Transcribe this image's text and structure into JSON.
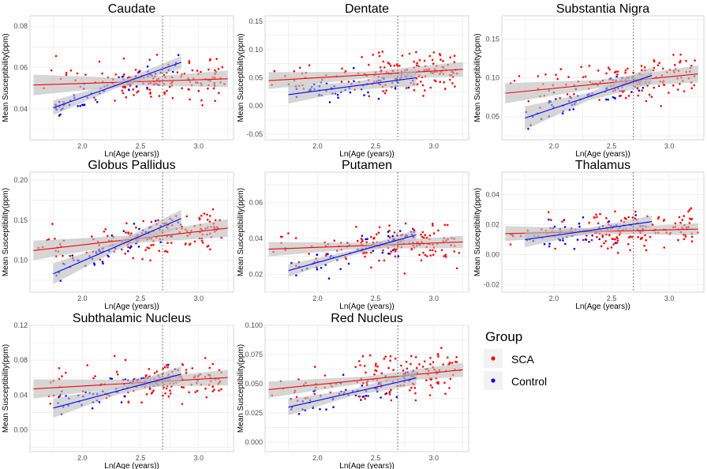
{
  "colors": {
    "sca": "#ff0000",
    "control": "#0000ff",
    "band": "#bdbdbd",
    "grid": "#ebebeb",
    "ref_line": "#555555"
  },
  "legend": {
    "title": "Group",
    "items": [
      {
        "label": "SCA",
        "color": "#ff0000"
      },
      {
        "label": "Control",
        "color": "#0000ff"
      }
    ]
  },
  "chart_data": [
    {
      "type": "scatter",
      "title": "Caudate",
      "xlabel": "Ln(Age (years))",
      "ylabel": "Mean Susceptibility(ppm)",
      "xlim": [
        1.55,
        3.3
      ],
      "ylim": [
        0.025,
        0.085
      ],
      "xticks": [
        "2.0",
        "2.5",
        "3.0"
      ],
      "yticks": [
        "0.04",
        "0.06",
        "0.08"
      ],
      "ref_x": 2.69,
      "series": [
        {
          "name": "SCA",
          "x_range": [
            1.58,
            3.25
          ],
          "line": [
            0.0515,
            0.0545
          ],
          "band_halfwidth": [
            0.005,
            0.004
          ]
        },
        {
          "name": "Control",
          "x_range": [
            1.75,
            2.85
          ],
          "line": [
            0.0405,
            0.0625
          ],
          "band_halfwidth": [
            0.0035,
            0.003
          ]
        }
      ]
    },
    {
      "type": "scatter",
      "title": "Dentate",
      "xlabel": "Ln(Age (years))",
      "ylabel": "Mean Susceptibility(ppm)",
      "xlim": [
        1.55,
        3.3
      ],
      "ylim": [
        -0.06,
        0.16
      ],
      "xticks": [
        "2.0",
        "2.5",
        "3.0"
      ],
      "yticks": [
        "-0.05",
        "0.00",
        "0.05",
        "0.10",
        "0.15"
      ],
      "ref_x": 2.69,
      "series": [
        {
          "name": "SCA",
          "x_range": [
            1.58,
            3.25
          ],
          "line": [
            0.045,
            0.065
          ],
          "band_halfwidth": [
            0.015,
            0.013
          ]
        },
        {
          "name": "Control",
          "x_range": [
            1.75,
            2.85
          ],
          "line": [
            0.02,
            0.05
          ],
          "band_halfwidth": [
            0.016,
            0.015
          ]
        }
      ]
    },
    {
      "type": "scatter",
      "title": "Substantia Nigra",
      "xlabel": "Ln(Age (years))",
      "ylabel": "Mean Susceptibility(ppm)",
      "xlim": [
        1.55,
        3.3
      ],
      "ylim": [
        0.02,
        0.18
      ],
      "xticks": [
        "2.0",
        "2.5",
        "3.0"
      ],
      "yticks": [
        "0.05",
        "0.10",
        "0.15"
      ],
      "ref_x": 2.69,
      "series": [
        {
          "name": "SCA",
          "x_range": [
            1.58,
            3.25
          ],
          "line": [
            0.08,
            0.105
          ],
          "band_halfwidth": [
            0.013,
            0.011
          ]
        },
        {
          "name": "Control",
          "x_range": [
            1.75,
            2.85
          ],
          "line": [
            0.048,
            0.103
          ],
          "band_halfwidth": [
            0.015,
            0.011
          ]
        }
      ]
    },
    {
      "type": "scatter",
      "title": "Globus Pallidus",
      "xlabel": "Ln(Age (years))",
      "ylabel": "Mean Susceptibility(ppm)",
      "xlim": [
        1.55,
        3.3
      ],
      "ylim": [
        0.06,
        0.21
      ],
      "xticks": [
        "2.0",
        "2.5",
        "3.0"
      ],
      "yticks": [
        "0.10",
        "0.15",
        "0.20"
      ],
      "ref_x": 2.69,
      "series": [
        {
          "name": "SCA",
          "x_range": [
            1.58,
            3.25
          ],
          "line": [
            0.112,
            0.14
          ],
          "band_halfwidth": [
            0.012,
            0.011
          ]
        },
        {
          "name": "Control",
          "x_range": [
            1.75,
            2.85
          ],
          "line": [
            0.083,
            0.152
          ],
          "band_halfwidth": [
            0.013,
            0.011
          ]
        }
      ]
    },
    {
      "type": "scatter",
      "title": "Putamen",
      "xlabel": "Ln(Age (years))",
      "ylabel": "Mean Susceptibility(ppm)",
      "xlim": [
        1.55,
        3.3
      ],
      "ylim": [
        0.01,
        0.077
      ],
      "xticks": [
        "2.0",
        "2.5",
        "3.0"
      ],
      "yticks": [
        "0.02",
        "0.04",
        "0.06"
      ],
      "ref_x": 2.69,
      "series": [
        {
          "name": "SCA",
          "x_range": [
            1.58,
            3.25
          ],
          "line": [
            0.034,
            0.038
          ],
          "band_halfwidth": [
            0.004,
            0.0035
          ]
        },
        {
          "name": "Control",
          "x_range": [
            1.75,
            2.85
          ],
          "line": [
            0.022,
            0.042
          ],
          "band_halfwidth": [
            0.0035,
            0.003
          ]
        }
      ]
    },
    {
      "type": "scatter",
      "title": "Thalamus",
      "xlabel": "Ln(Age (years))",
      "ylabel": "Mean Susceptibility(ppm)",
      "xlim": [
        1.55,
        3.3
      ],
      "ylim": [
        -0.025,
        0.055
      ],
      "xticks": [
        "2.0",
        "2.5",
        "3.0"
      ],
      "yticks": [
        "-0.02",
        "0.00",
        "0.02",
        "0.04"
      ],
      "ref_x": 2.69,
      "series": [
        {
          "name": "SCA",
          "x_range": [
            1.58,
            3.25
          ],
          "line": [
            0.014,
            0.017
          ],
          "band_halfwidth": [
            0.005,
            0.004
          ]
        },
        {
          "name": "Control",
          "x_range": [
            1.75,
            2.85
          ],
          "line": [
            0.01,
            0.022
          ],
          "band_halfwidth": [
            0.005,
            0.004
          ]
        }
      ]
    },
    {
      "type": "scatter",
      "title": "Subthalamic Nucleus",
      "xlabel": "Ln(Age (years))",
      "ylabel": "Mean Susceptibility(ppm)",
      "xlim": [
        1.55,
        3.3
      ],
      "ylim": [
        -0.025,
        0.12
      ],
      "xticks": [
        "2.0",
        "2.5",
        "3.0"
      ],
      "yticks": [
        "0.00",
        "0.04",
        "0.08",
        "0.12"
      ],
      "ref_x": 2.69,
      "series": [
        {
          "name": "SCA",
          "x_range": [
            1.58,
            3.25
          ],
          "line": [
            0.047,
            0.06
          ],
          "band_halfwidth": [
            0.011,
            0.009
          ]
        },
        {
          "name": "Control",
          "x_range": [
            1.75,
            2.85
          ],
          "line": [
            0.025,
            0.064
          ],
          "band_halfwidth": [
            0.011,
            0.009
          ]
        }
      ]
    },
    {
      "type": "scatter",
      "title": "Red Nucleus",
      "xlabel": "Ln(Age (years))",
      "ylabel": "Mean Susceptibility(ppm)",
      "xlim": [
        1.55,
        3.3
      ],
      "ylim": [
        -0.008,
        0.1
      ],
      "xticks": [
        "2.0",
        "2.5",
        "3.0"
      ],
      "yticks": [
        "0.000",
        "0.025",
        "0.050",
        "0.075",
        "0.100"
      ],
      "ref_x": 2.69,
      "series": [
        {
          "name": "SCA",
          "x_range": [
            1.58,
            3.25
          ],
          "line": [
            0.045,
            0.062
          ],
          "band_halfwidth": [
            0.007,
            0.006
          ]
        },
        {
          "name": "Control",
          "x_range": [
            1.75,
            2.85
          ],
          "line": [
            0.03,
            0.055
          ],
          "band_halfwidth": [
            0.007,
            0.006
          ]
        }
      ]
    }
  ]
}
